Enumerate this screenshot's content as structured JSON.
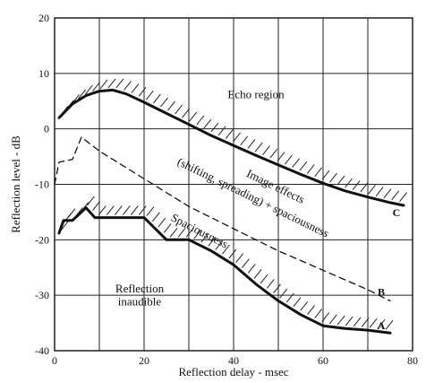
{
  "chart_data": {
    "type": "line",
    "title": "",
    "xlabel": "Reflection delay - msec",
    "ylabel": "Reflection level - dB",
    "xlim": [
      0,
      80
    ],
    "ylim": [
      -40,
      20
    ],
    "xticks": [
      0,
      20,
      40,
      60,
      80
    ],
    "yticks": [
      20,
      10,
      0,
      -10,
      -20,
      -30,
      -40
    ],
    "grid": true,
    "series": [
      {
        "name": "C",
        "style": "solid-thick",
        "hatched": true,
        "x": [
          1,
          4,
          7,
          10,
          13,
          16,
          20,
          25,
          30,
          35,
          40,
          45,
          50,
          55,
          60,
          65,
          70,
          75,
          78
        ],
        "y": [
          2,
          4.5,
          6,
          6.8,
          7,
          6.3,
          4.8,
          2.8,
          0.8,
          -1.2,
          -3,
          -4.8,
          -6.5,
          -8.2,
          -9.8,
          -11.2,
          -12.3,
          -13.3,
          -13.8
        ]
      },
      {
        "name": "B",
        "style": "dashed",
        "hatched": false,
        "x": [
          0,
          1,
          4,
          6,
          10,
          20,
          30,
          40,
          50,
          60,
          70,
          75
        ],
        "y": [
          -10,
          -6,
          -5.5,
          -1.5,
          -4,
          -9,
          -14,
          -18,
          -22,
          -25.5,
          -29,
          -31
        ]
      },
      {
        "name": "A",
        "style": "solid-thick",
        "hatched": true,
        "x": [
          1,
          2,
          4,
          6,
          7,
          9,
          12,
          20,
          25,
          30,
          35,
          40,
          45,
          50,
          55,
          60,
          65,
          70,
          75
        ],
        "y": [
          -18.8,
          -16.5,
          -16.5,
          -15,
          -14.2,
          -16,
          -16,
          -16,
          -20,
          -20,
          -22,
          -24.5,
          -28,
          -31,
          -33.5,
          -35.5,
          -36,
          -36.3,
          -36.8
        ]
      }
    ],
    "annotations": [
      {
        "text": "Echo region",
        "x": 45,
        "y": 5.5
      },
      {
        "text": "Image effects",
        "x": 49,
        "y": -11,
        "rotate": 26
      },
      {
        "text": "(shifting, spreading) + spaciousness",
        "x": 44,
        "y": -13,
        "rotate": 26
      },
      {
        "text": "Spaciousness",
        "x": 32,
        "y": -19,
        "rotate": 27
      },
      {
        "text": "Reflection",
        "x": 19,
        "y": -29.5
      },
      {
        "text": "inaudible",
        "x": 19,
        "y": -31.8
      }
    ]
  }
}
